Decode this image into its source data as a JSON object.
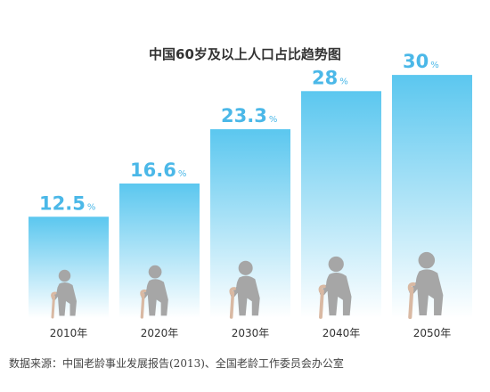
{
  "chart_data": {
    "type": "bar",
    "title": "中国60岁及以上人口占比趋势图",
    "categories": [
      "2010年",
      "2020年",
      "2030年",
      "2040年",
      "2050年"
    ],
    "values": [
      12.5,
      16.6,
      23.3,
      28,
      30
    ],
    "value_labels": [
      "12.5",
      "16.6",
      "23.3",
      "28",
      "30"
    ],
    "unit": "%",
    "ylim": [
      0,
      31
    ],
    "grid": false,
    "legend": "none",
    "bar_color_top": "#5bc7ef",
    "bar_color_bottom": "#ffffff",
    "label_color": "#4bb8e8",
    "figure_color": "#a6a6a6",
    "cane_color": "#d9b9a3"
  },
  "source": "数据来源：中国老龄事业发展报告(2013)、全国老龄工作委员会办公室"
}
